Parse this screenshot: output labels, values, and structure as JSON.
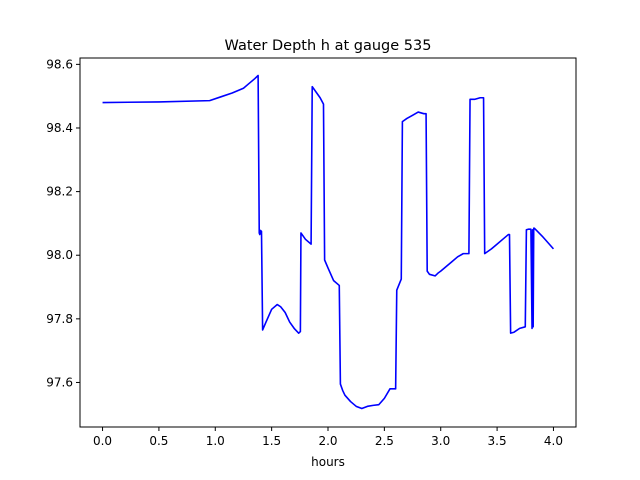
{
  "chart_data": {
    "type": "line",
    "title": "Water Depth h at gauge 535",
    "xlabel": "hours",
    "ylabel": "",
    "xlim": [
      -0.2,
      4.2
    ],
    "ylim": [
      97.46,
      98.62
    ],
    "xticks": [
      0.0,
      0.5,
      1.0,
      1.5,
      2.0,
      2.5,
      3.0,
      3.5,
      4.0
    ],
    "xtick_labels": [
      "0.0",
      "0.5",
      "1.0",
      "1.5",
      "2.0",
      "2.5",
      "3.0",
      "3.5",
      "4.0"
    ],
    "yticks": [
      97.6,
      97.8,
      98.0,
      98.2,
      98.4,
      98.6
    ],
    "ytick_labels": [
      "97.6",
      "97.8",
      "98.0",
      "98.2",
      "98.4",
      "98.6"
    ],
    "grid": false,
    "line_color": "#0000ff",
    "series": [
      {
        "x": [
          0.0,
          0.5,
          0.95,
          1.05,
          1.15,
          1.25,
          1.3,
          1.35,
          1.38,
          1.39,
          1.395,
          1.4,
          1.41,
          1.42,
          1.45,
          1.5,
          1.55,
          1.58,
          1.62,
          1.66,
          1.7,
          1.74,
          1.755,
          1.76,
          1.8,
          1.85,
          1.86,
          1.87,
          1.9,
          1.93,
          1.96,
          1.97,
          2.0,
          2.05,
          2.1,
          2.11,
          2.13,
          2.15,
          2.2,
          2.25,
          2.3,
          2.35,
          2.4,
          2.45,
          2.5,
          2.55,
          2.6,
          2.61,
          2.65,
          2.66,
          2.7,
          2.75,
          2.8,
          2.85,
          2.87,
          2.88,
          2.9,
          2.95,
          2.98,
          3.0,
          3.05,
          3.1,
          3.15,
          3.2,
          3.25,
          3.26,
          3.3,
          3.35,
          3.38,
          3.39,
          3.45,
          3.5,
          3.55,
          3.6,
          3.61,
          3.62,
          3.65,
          3.7,
          3.75,
          3.76,
          3.78,
          3.8,
          3.81,
          3.815,
          3.82,
          3.825,
          3.83,
          3.85,
          3.9,
          3.95,
          4.0
        ],
        "y": [
          98.48,
          98.482,
          98.486,
          98.498,
          98.51,
          98.525,
          98.54,
          98.555,
          98.565,
          98.07,
          98.065,
          98.078,
          98.075,
          97.765,
          97.79,
          97.83,
          97.845,
          97.838,
          97.82,
          97.79,
          97.77,
          97.755,
          97.76,
          98.07,
          98.05,
          98.035,
          98.53,
          98.525,
          98.51,
          98.495,
          98.475,
          97.985,
          97.96,
          97.92,
          97.905,
          97.595,
          97.575,
          97.56,
          97.54,
          97.525,
          97.518,
          97.525,
          97.528,
          97.53,
          97.55,
          97.58,
          97.58,
          97.89,
          97.925,
          98.42,
          98.43,
          98.44,
          98.45,
          98.445,
          98.445,
          97.95,
          97.94,
          97.935,
          97.945,
          97.95,
          97.965,
          97.98,
          97.995,
          98.005,
          98.005,
          98.49,
          98.49,
          98.495,
          98.495,
          98.005,
          98.02,
          98.035,
          98.05,
          98.065,
          98.065,
          97.755,
          97.758,
          97.77,
          97.775,
          98.08,
          98.082,
          98.082,
          97.77,
          98.08,
          97.775,
          98.085,
          98.085,
          98.078,
          98.06,
          98.04,
          98.02
        ]
      }
    ]
  }
}
